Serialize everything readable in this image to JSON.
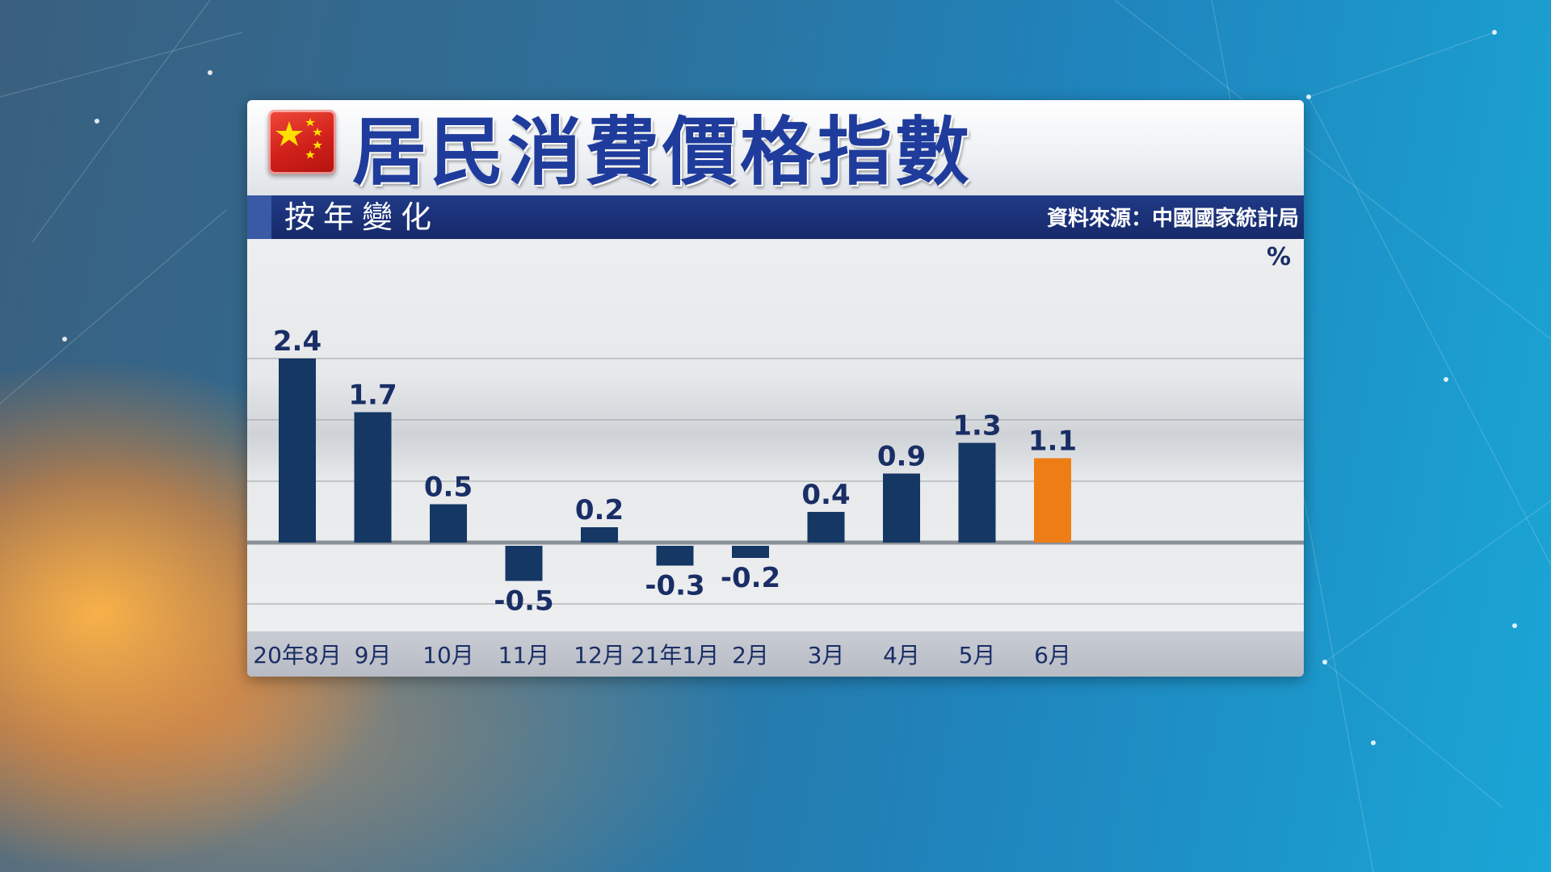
{
  "header": {
    "title": "居民消費價格指數",
    "subtitle": "按年變化",
    "source": "資料來源：中國國家統計局"
  },
  "colors": {
    "bar": "#143764",
    "highlight": "#ee7d16",
    "title": "#1f3c9c",
    "band": "#1b2f75"
  },
  "icons": {
    "flag": "china-flag-icon"
  },
  "chart_data": {
    "type": "bar",
    "categories": [
      "20年8月",
      "9月",
      "10月",
      "11月",
      "12月",
      "21年1月",
      "2月",
      "3月",
      "4月",
      "5月",
      "6月"
    ],
    "values": [
      2.4,
      1.7,
      0.5,
      -0.5,
      0.2,
      -0.3,
      -0.2,
      0.4,
      0.9,
      1.3,
      1.1
    ],
    "value_labels": [
      "2.4",
      "1.7",
      "0.5",
      "-0.5",
      "0.2",
      "-0.3",
      "-0.2",
      "0.4",
      "0.9",
      "1.3",
      "1.1"
    ],
    "highlight_index": 10,
    "unit": "%",
    "title": "",
    "xlabel": "",
    "ylabel": "",
    "ylim": [
      -0.9,
      2.8
    ],
    "grid": true,
    "legend": "none"
  }
}
